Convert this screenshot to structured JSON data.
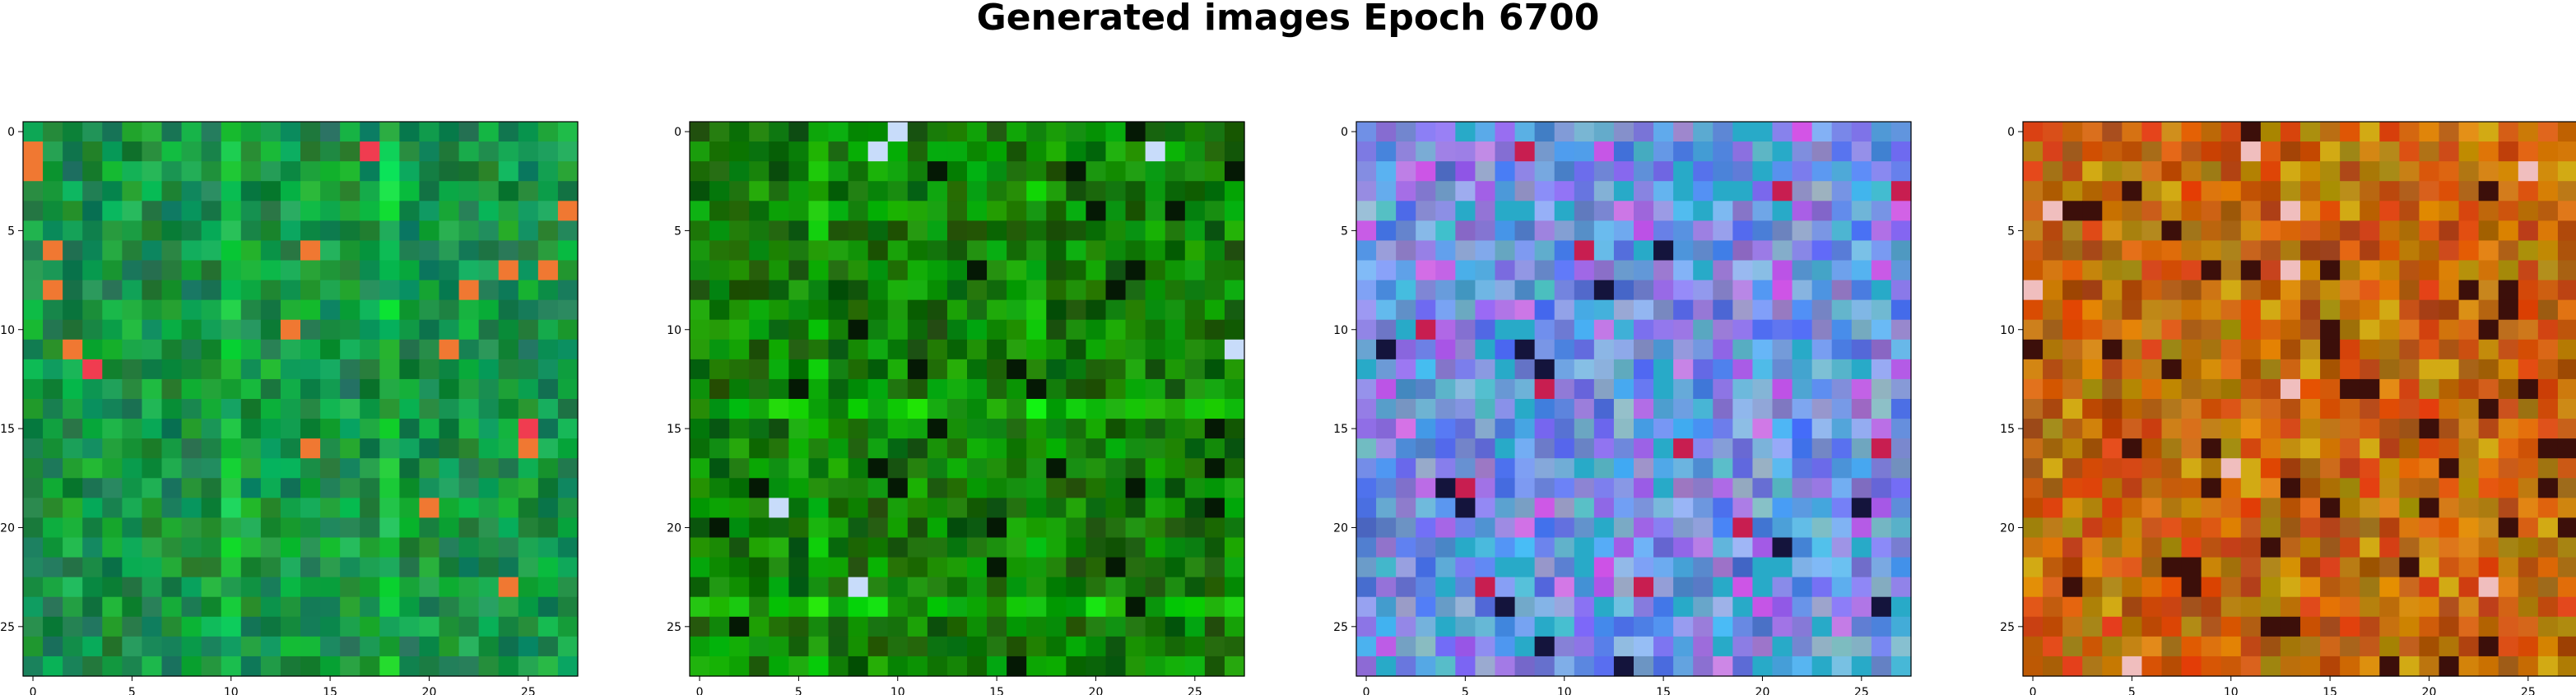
{
  "title": "Generated images Epoch 6700",
  "chart_data": [
    {
      "type": "heatmap",
      "grid": [
        28,
        28
      ],
      "xticks": [
        0,
        5,
        10,
        15,
        20,
        25
      ],
      "yticks": [
        0,
        5,
        10,
        15,
        20,
        25
      ],
      "xlim": [
        -0.5,
        27.5
      ],
      "ylim": [
        27.5,
        -0.5
      ],
      "dominant_color": "#0a8a3c",
      "color_theme": "green"
    },
    {
      "type": "heatmap",
      "grid": [
        28,
        28
      ],
      "xticks": [
        0,
        5,
        10,
        15,
        20,
        25
      ],
      "yticks": [
        0,
        5,
        10,
        15,
        20,
        25
      ],
      "xlim": [
        -0.5,
        27.5
      ],
      "ylim": [
        27.5,
        -0.5
      ],
      "dominant_color": "#127a12",
      "color_theme": "deep-green"
    },
    {
      "type": "heatmap",
      "grid": [
        28,
        28
      ],
      "xticks": [
        0,
        5,
        10,
        15,
        20,
        25
      ],
      "yticks": [
        0,
        5,
        10,
        15,
        20,
        25
      ],
      "xlim": [
        -0.5,
        27.5
      ],
      "ylim": [
        27.5,
        -0.5
      ],
      "dominant_color": "#5a8ee0",
      "color_theme": "blue-violet"
    },
    {
      "type": "heatmap",
      "grid": [
        28,
        28
      ],
      "xticks": [
        0,
        5,
        10,
        15,
        20,
        25
      ],
      "yticks": [
        0,
        5,
        10,
        15,
        20,
        25
      ],
      "xlim": [
        -0.5,
        27.5
      ],
      "ylim": [
        27.5,
        -0.5
      ],
      "dominant_color": "#c07a10",
      "color_theme": "amber"
    }
  ]
}
